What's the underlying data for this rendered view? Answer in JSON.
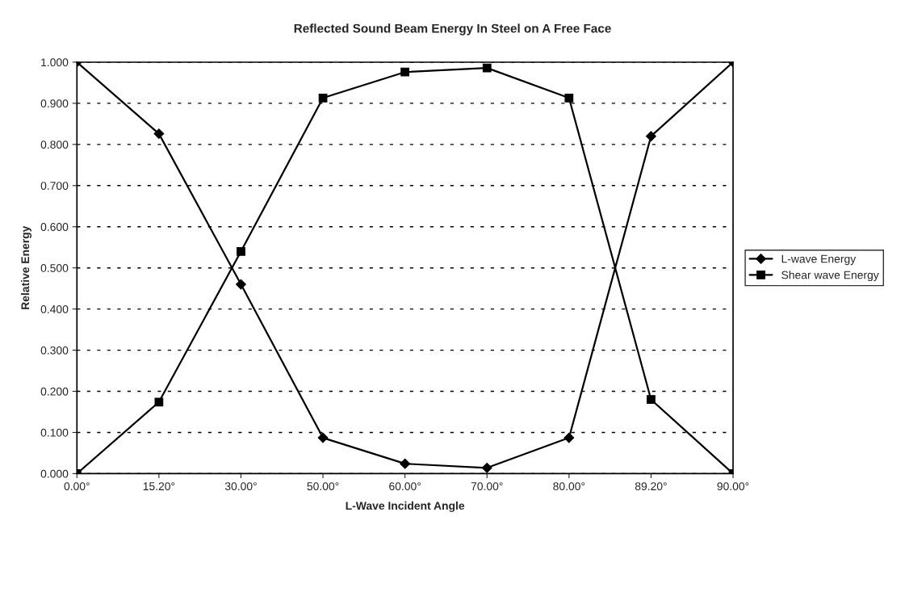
{
  "chart_data": {
    "type": "line",
    "title": "Reflected Sound Beam Energy In Steel on A Free Face",
    "xlabel": "L-Wave Incident Angle",
    "ylabel": "Relative Energy",
    "categories": [
      "0.00°",
      "15.20°",
      "30.00°",
      "50.00°",
      "60.00°",
      "70.00°",
      "80.00°",
      "89.20°",
      "90.00°"
    ],
    "series": [
      {
        "name": "L-wave Energy",
        "color": "#000000",
        "marker": "diamond",
        "values": [
          1.0,
          0.826,
          0.46,
          0.087,
          0.024,
          0.014,
          0.087,
          0.82,
          1.0
        ]
      },
      {
        "name": "Shear wave Energy",
        "color": "#000000",
        "marker": "square",
        "values": [
          0.0,
          0.174,
          0.54,
          0.913,
          0.976,
          0.986,
          0.913,
          0.18,
          0.0
        ]
      }
    ],
    "ylim": [
      0,
      1
    ],
    "yticks": [
      {
        "value": 0,
        "label": "0.000"
      },
      {
        "value": 0.1,
        "label": "0.100"
      },
      {
        "value": 0.2,
        "label": "0.200"
      },
      {
        "value": 0.3,
        "label": "0.300"
      },
      {
        "value": 0.4,
        "label": "0.400"
      },
      {
        "value": 0.5,
        "label": "0.500"
      },
      {
        "value": 0.6,
        "label": "0.600"
      },
      {
        "value": 0.7,
        "label": "0.700"
      },
      {
        "value": 0.8,
        "label": "0.800"
      },
      {
        "value": 0.9,
        "label": "0.900"
      },
      {
        "value": 1,
        "label": "1.000"
      }
    ],
    "grid": "y",
    "legend": "right",
    "line_style": "solid"
  }
}
